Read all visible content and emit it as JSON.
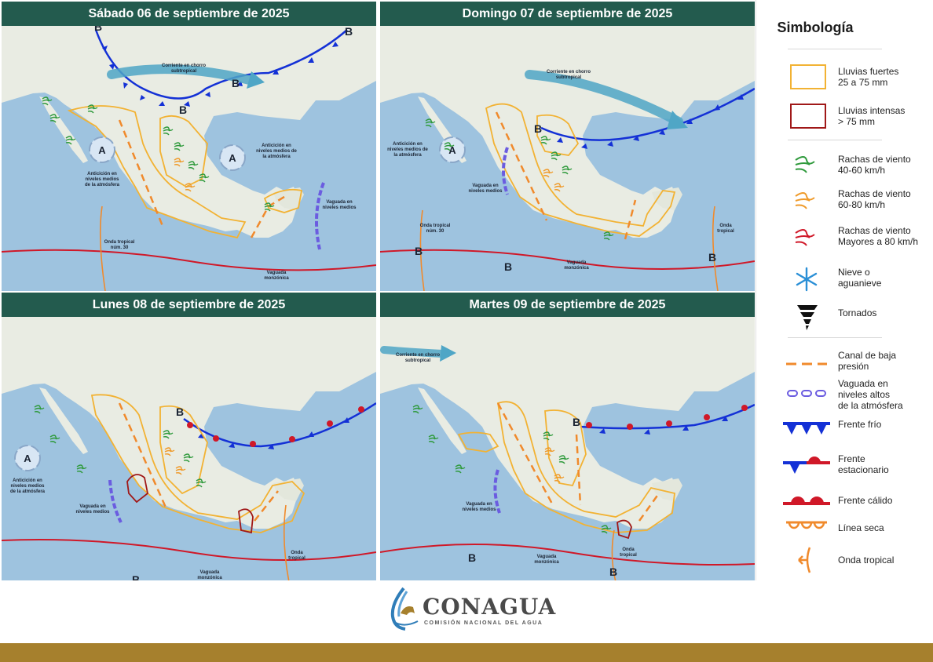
{
  "panels": [
    {
      "title": "Sábado 06 de septiembre de 2025"
    },
    {
      "title": "Domingo 07 de septiembre de 2025"
    },
    {
      "title": "Lunes 08 de septiembre de 2025"
    },
    {
      "title": "Martes 09 de septiembre de 2025"
    }
  ],
  "map_labels": {
    "jet": [
      "Corriente en chorro",
      "subtropical"
    ],
    "anticyclone": [
      "Anticición en",
      "niveles medios",
      "de la atmósfera"
    ],
    "anticyclone_gulf": [
      "Anticición en",
      "niveles medios de",
      "la atmósfera"
    ],
    "trough_mid": [
      "Vaguada en",
      "niveles medios"
    ],
    "tropical_wave": "Onda tropical",
    "tropical_wave_30": [
      "Onda tropical",
      "núm. 30"
    ],
    "tropical_wave_two": [
      "Onda",
      "tropical"
    ],
    "monsoon": [
      "Vaguada",
      "monzónica"
    ],
    "A": "A",
    "B": "B"
  },
  "legend": {
    "title": "Simbología",
    "items": [
      {
        "label": "Lluvias fuertes\n25 a 75 mm",
        "icon": "yellow-rain-box"
      },
      {
        "label": "Lluvias intensas\n> 75 mm",
        "icon": "red-rain-box"
      },
      {
        "label": "Rachas de viento\n40-60 km/h",
        "icon": "wind-green-icon"
      },
      {
        "label": "Rachas de viento\n60-80 km/h",
        "icon": "wind-orange-icon"
      },
      {
        "label": "Rachas de viento\nMayores a 80 km/h",
        "icon": "wind-red-icon"
      },
      {
        "label": "Nieve o\naguanieve",
        "icon": "snowflake-icon"
      },
      {
        "label": "Tornados",
        "icon": "tornado-icon"
      },
      {
        "label": "Canal de baja\npresión",
        "icon": "low-pressure-trough-icon"
      },
      {
        "label": "Vaguada en\nniveles altos\nde la atmósfera",
        "icon": "upper-trough-icon"
      },
      {
        "label": "Frente frío",
        "icon": "cold-front-icon"
      },
      {
        "label": "Frente\nestacionario",
        "icon": "stationary-front-icon"
      },
      {
        "label": "Frente cálido",
        "icon": "warm-front-icon"
      },
      {
        "label": "Línea seca",
        "icon": "dry-line-icon"
      },
      {
        "label": "Onda tropical",
        "icon": "tropical-wave-icon"
      }
    ]
  },
  "footer": {
    "logo_word": "CONAGUA",
    "logo_sub": "COMISIÓN NACIONAL DEL AGUA"
  },
  "colors": {
    "header": "#235b4e",
    "ocean": "#9ec3df",
    "land": "#eef0ea",
    "rain_heavy": "#f2b233",
    "rain_intense": "#a01818",
    "front_cold": "#1431d6",
    "front_warm": "#d01828",
    "trough": "#f08a2c",
    "gold": "#a6802d"
  }
}
